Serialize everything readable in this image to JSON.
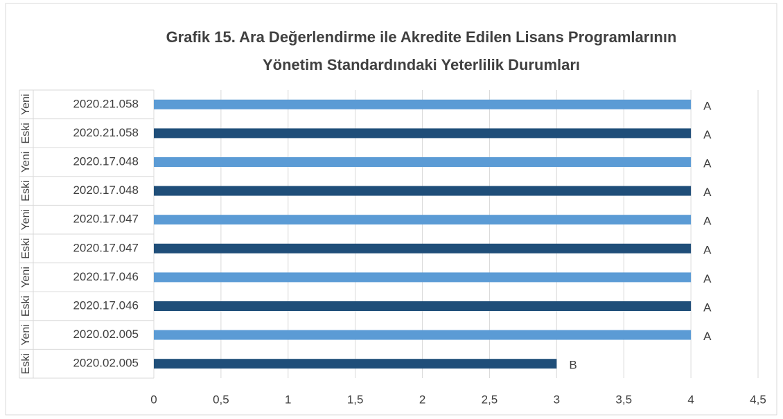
{
  "chart_data": {
    "type": "bar",
    "orientation": "horizontal",
    "title": [
      "Grafik 15. Ara Değerlendirme ile Akredite Edilen Lisans Programlarının",
      "Yönetim Standardındaki Yeterlilik Durumları"
    ],
    "groups": [
      "Yeni",
      "Eski",
      "Yeni",
      "Eski",
      "Yeni",
      "Eski",
      "Yeni",
      "Eski",
      "Yeni",
      "Eski"
    ],
    "categories": [
      "2020.21.058",
      "2020.21.058",
      "2020.17.048",
      "2020.17.048",
      "2020.17.047",
      "2020.17.047",
      "2020.17.046",
      "2020.17.046",
      "2020.02.005",
      "2020.02.005"
    ],
    "values": [
      4,
      4,
      4,
      4,
      4,
      4,
      4,
      4,
      4,
      3
    ],
    "value_labels": [
      "A",
      "A",
      "A",
      "A",
      "A",
      "A",
      "A",
      "A",
      "A",
      "B"
    ],
    "colors": [
      "#5b9bd5",
      "#1f4e79",
      "#5b9bd5",
      "#1f4e79",
      "#5b9bd5",
      "#1f4e79",
      "#5b9bd5",
      "#1f4e79",
      "#5b9bd5",
      "#1f4e79"
    ],
    "xlim": [
      0,
      4.5
    ],
    "xticks": [
      0,
      {
        "value": 0.5,
        "label": "0,5"
      },
      1,
      {
        "value": 1.5,
        "label": "1,5"
      },
      2,
      {
        "value": 2.5,
        "label": "2,5"
      },
      3,
      {
        "value": 3.5,
        "label": "3,5"
      },
      4,
      {
        "value": 4.5,
        "label": "4,5"
      }
    ],
    "grid": true
  }
}
